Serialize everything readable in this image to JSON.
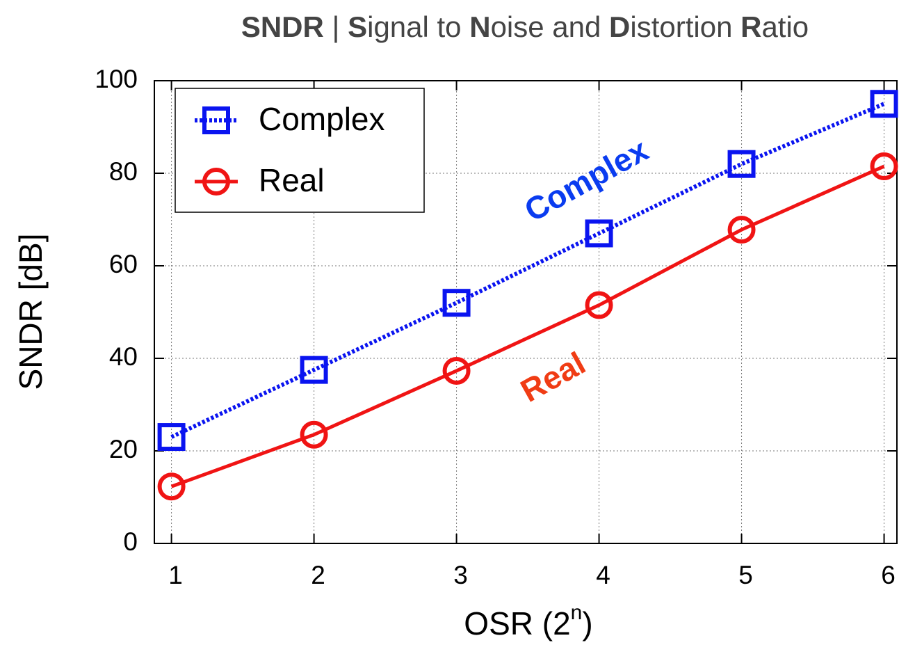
{
  "chart_data": {
    "type": "line",
    "title": [
      {
        "text": "SNDR",
        "bold": true
      },
      {
        "text": " | ",
        "bold": false
      },
      {
        "text": "S",
        "bold": true
      },
      {
        "text": "ignal to ",
        "bold": false
      },
      {
        "text": "N",
        "bold": true
      },
      {
        "text": "oise and ",
        "bold": false
      },
      {
        "text": "D",
        "bold": true
      },
      {
        "text": "istortion ",
        "bold": false
      },
      {
        "text": "R",
        "bold": true
      },
      {
        "text": "atio",
        "bold": false
      }
    ],
    "x_label": [
      {
        "text": "OSR (2",
        "sup": false
      },
      {
        "text": "n",
        "sup": true
      },
      {
        "text": ")",
        "sup": false
      }
    ],
    "y_label": "SNDR [dB]",
    "x": [
      1,
      2,
      3,
      4,
      5,
      6
    ],
    "series": [
      {
        "name": "Complex",
        "color": "#0a14f0",
        "marker": "square",
        "dash": "dotted",
        "values": [
          23,
          37.5,
          52,
          67,
          82,
          95
        ]
      },
      {
        "name": "Real",
        "color": "#f01414",
        "marker": "circle",
        "dash": "solid",
        "values": [
          12.3,
          23.5,
          37.3,
          51.5,
          67.8,
          81.5
        ]
      }
    ],
    "annotations": [
      {
        "text": "Complex",
        "color": "#0a3cf0"
      },
      {
        "text": "Real",
        "color": "#f03c14"
      }
    ],
    "xlim": [
      0.88,
      6.09
    ],
    "ylim": [
      0,
      100
    ],
    "xticks": [
      1,
      2,
      3,
      4,
      5,
      6
    ],
    "yticks": [
      0,
      20,
      40,
      60,
      80,
      100
    ],
    "grid": true,
    "legend": "top-left"
  }
}
